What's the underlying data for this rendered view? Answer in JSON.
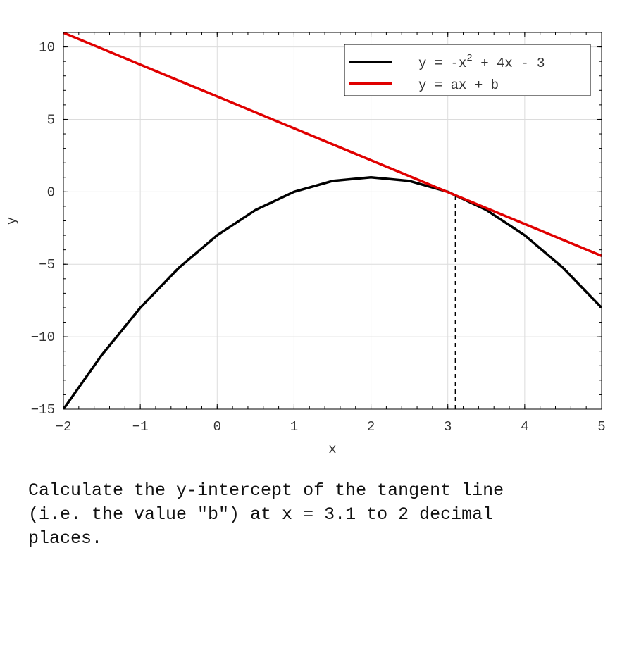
{
  "chart_data": {
    "type": "line",
    "xlabel": "x",
    "ylabel": "y",
    "xlim": [
      -2,
      5
    ],
    "ylim": [
      -15,
      11
    ],
    "xticks": [
      -2,
      -1,
      0,
      1,
      2,
      3,
      4,
      5
    ],
    "yticks": [
      -15,
      -10,
      -5,
      0,
      5,
      10
    ],
    "grid": true,
    "legend_position": "top-right",
    "series": [
      {
        "name": "y = -x^2 + 4x - 3",
        "legend_parts": [
          "y = -x",
          "2",
          " + 4x - 3"
        ],
        "color": "#000000",
        "x": [
          -2,
          -1.5,
          -1,
          -0.5,
          0,
          0.5,
          1,
          1.5,
          2,
          2.5,
          3,
          3.5,
          4,
          4.5,
          5
        ],
        "y": [
          -15,
          -11.25,
          -8,
          -5.25,
          -3,
          -1.25,
          0,
          0.75,
          1,
          0.75,
          0,
          -1.25,
          -3,
          -5.25,
          -8
        ]
      },
      {
        "name": "y = ax + b",
        "legend_parts": [
          "y = ax + b"
        ],
        "color": "#e00000",
        "x": [
          -2,
          5
        ],
        "y": [
          10.98,
          -4.42
        ]
      }
    ],
    "annotations": [
      {
        "type": "vertical-dashed",
        "x": 3.1,
        "y_from": -15,
        "y_to": -0.21,
        "color": "#000000"
      }
    ]
  },
  "question": {
    "text": "Calculate the y-intercept of the tangent line\n(i.e. the value \"b\") at x = 3.1 to 2 decimal\nplaces."
  }
}
